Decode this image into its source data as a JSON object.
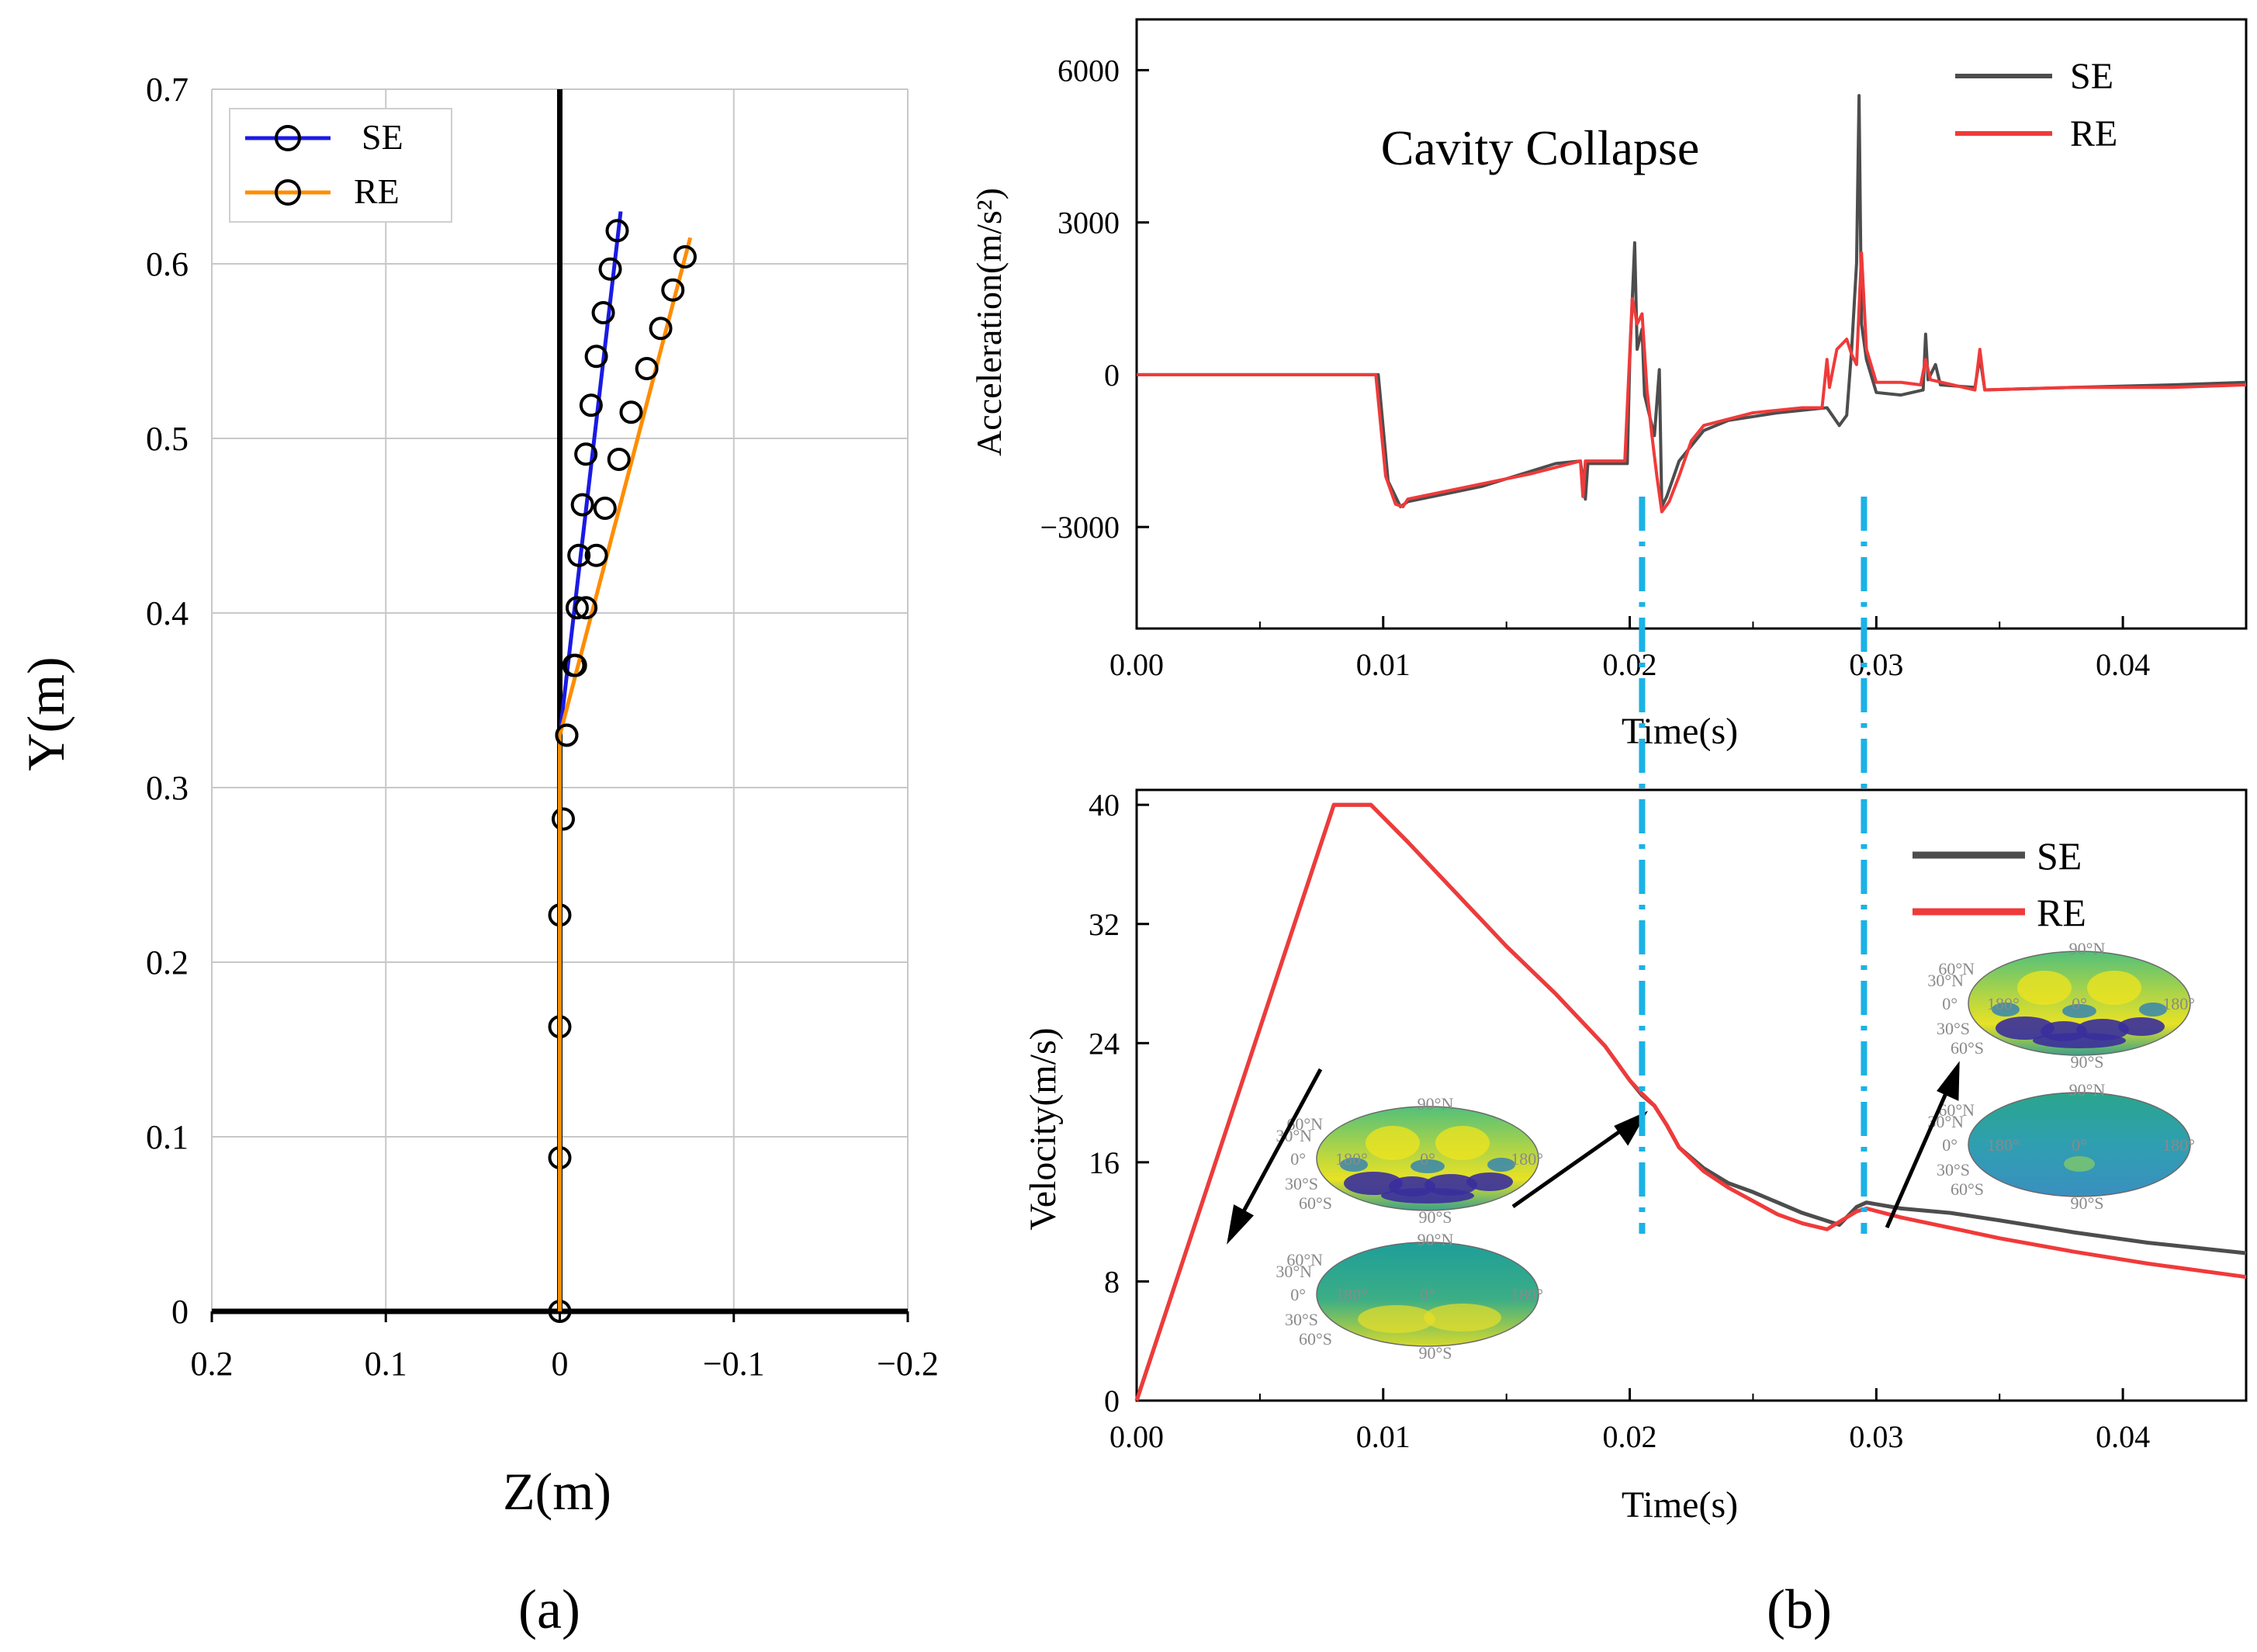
{
  "panel_labels": {
    "a": "(a)",
    "b": "(b)"
  },
  "colors": {
    "SE_a": "#1a1ae6",
    "RE_a": "#ff8c00",
    "SE_b": "#4d4d4d",
    "RE_b": "#f03a3a",
    "marker": "#000000",
    "dashdot": "#1ab2e6",
    "grid": "#c8c8c8"
  },
  "chart_data": [
    {
      "id": "a",
      "type": "line",
      "xlabel": "Z(m)",
      "ylabel": "Y(m)",
      "xlim": [
        0.2,
        -0.2
      ],
      "ylim": [
        0,
        0.7
      ],
      "xticks": [
        0.2,
        0.1,
        0,
        -0.1,
        -0.2
      ],
      "xtick_labels": [
        "0.2",
        "0.1",
        "0",
        "−0.1",
        "−0.2"
      ],
      "yticks": [
        0,
        0.1,
        0.2,
        0.3,
        0.4,
        0.5,
        0.6,
        0.7
      ],
      "ytick_labels": [
        "0",
        "0.1",
        "0.2",
        "0.3",
        "0.4",
        "0.5",
        "0.6",
        "0.7"
      ],
      "grid": true,
      "legend": {
        "position": "top-left",
        "entries": [
          "SE",
          "RE"
        ]
      },
      "axis_line": {
        "x": 0,
        "ymin": 0,
        "ymax": 0.7
      },
      "series": [
        {
          "name": "SE",
          "color_key": "SE_a",
          "line": [
            [
              0,
              0
            ],
            [
              0,
              0.33
            ],
            [
              -0.035,
              0.63
            ]
          ],
          "markers": [
            [
              0,
              0
            ],
            [
              0,
              0.088
            ],
            [
              0,
              0.163
            ],
            [
              0,
              0.227
            ],
            [
              -0.002,
              0.282
            ],
            [
              -0.004,
              0.33
            ],
            [
              -0.008,
              0.37
            ],
            [
              -0.01,
              0.403
            ],
            [
              -0.011,
              0.433
            ],
            [
              -0.013,
              0.462
            ],
            [
              -0.015,
              0.491
            ],
            [
              -0.018,
              0.519
            ],
            [
              -0.021,
              0.547
            ],
            [
              -0.025,
              0.572
            ],
            [
              -0.029,
              0.597
            ],
            [
              -0.033,
              0.619
            ]
          ]
        },
        {
          "name": "RE",
          "color_key": "RE_a",
          "line": [
            [
              0,
              0
            ],
            [
              0,
              0.33
            ],
            [
              -0.075,
              0.615
            ]
          ],
          "markers": [
            [
              -0.004,
              0.33
            ],
            [
              -0.009,
              0.37
            ],
            [
              -0.015,
              0.403
            ],
            [
              -0.021,
              0.433
            ],
            [
              -0.026,
              0.46
            ],
            [
              -0.034,
              0.488
            ],
            [
              -0.041,
              0.515
            ],
            [
              -0.05,
              0.54
            ],
            [
              -0.058,
              0.563
            ],
            [
              -0.065,
              0.585
            ],
            [
              -0.072,
              0.604
            ]
          ]
        }
      ]
    },
    {
      "id": "b-top",
      "type": "line",
      "title": "Cavity Collapse",
      "xlabel": "Time(s)",
      "ylabel": "Acceleration(m/s²)",
      "xlim": [
        0,
        0.045
      ],
      "ylim": [
        -5000,
        7000
      ],
      "xticks": [
        0,
        0.01,
        0.02,
        0.03,
        0.04
      ],
      "xtick_labels": [
        "0.00",
        "0.01",
        "0.02",
        "0.03",
        "0.04"
      ],
      "yticks": [
        -3000,
        0,
        3000,
        6000
      ],
      "ytick_labels": [
        "−3000",
        "0",
        "3000",
        "6000"
      ],
      "grid": false,
      "legend": {
        "position": "top-right",
        "entries": [
          "SE",
          "RE"
        ]
      },
      "series": [
        {
          "name": "SE",
          "color_key": "SE_b",
          "points": [
            [
              0,
              0
            ],
            [
              0.0098,
              0
            ],
            [
              0.0102,
              -2100
            ],
            [
              0.0107,
              -2600
            ],
            [
              0.011,
              -2500
            ],
            [
              0.014,
              -2200
            ],
            [
              0.017,
              -1750
            ],
            [
              0.018,
              -1700
            ],
            [
              0.0182,
              -2450
            ],
            [
              0.0183,
              -1750
            ],
            [
              0.0199,
              -1750
            ],
            [
              0.02,
              300
            ],
            [
              0.0202,
              2600
            ],
            [
              0.0203,
              500
            ],
            [
              0.0205,
              900
            ],
            [
              0.0206,
              -400
            ],
            [
              0.021,
              -1200
            ],
            [
              0.0212,
              100
            ],
            [
              0.0213,
              -2600
            ],
            [
              0.0215,
              -2400
            ],
            [
              0.022,
              -1700
            ],
            [
              0.023,
              -1100
            ],
            [
              0.024,
              -900
            ],
            [
              0.026,
              -750
            ],
            [
              0.028,
              -650
            ],
            [
              0.0285,
              -1000
            ],
            [
              0.0288,
              -800
            ],
            [
              0.029,
              500
            ],
            [
              0.0292,
              2200
            ],
            [
              0.0293,
              5500
            ],
            [
              0.0294,
              1000
            ],
            [
              0.0296,
              300
            ],
            [
              0.03,
              -350
            ],
            [
              0.031,
              -400
            ],
            [
              0.0319,
              -300
            ],
            [
              0.032,
              800
            ],
            [
              0.0321,
              -100
            ],
            [
              0.0324,
              200
            ],
            [
              0.0326,
              -200
            ],
            [
              0.034,
              -250
            ],
            [
              0.0342,
              350
            ],
            [
              0.0344,
              -300
            ],
            [
              0.038,
              -250
            ],
            [
              0.042,
              -200
            ],
            [
              0.045,
              -150
            ]
          ]
        },
        {
          "name": "RE",
          "color_key": "RE_b",
          "points": [
            [
              0,
              0
            ],
            [
              0.0097,
              0
            ],
            [
              0.0101,
              -2000
            ],
            [
              0.0105,
              -2550
            ],
            [
              0.0108,
              -2600
            ],
            [
              0.011,
              -2450
            ],
            [
              0.014,
              -2150
            ],
            [
              0.016,
              -1950
            ],
            [
              0.018,
              -1700
            ],
            [
              0.0181,
              -2400
            ],
            [
              0.0182,
              -1700
            ],
            [
              0.0198,
              -1700
            ],
            [
              0.0201,
              1500
            ],
            [
              0.0203,
              1000
            ],
            [
              0.0205,
              1200
            ],
            [
              0.0207,
              -300
            ],
            [
              0.0209,
              -1200
            ],
            [
              0.0211,
              -2000
            ],
            [
              0.0213,
              -2700
            ],
            [
              0.0216,
              -2500
            ],
            [
              0.022,
              -2000
            ],
            [
              0.0225,
              -1300
            ],
            [
              0.023,
              -1000
            ],
            [
              0.025,
              -750
            ],
            [
              0.027,
              -650
            ],
            [
              0.0278,
              -650
            ],
            [
              0.028,
              300
            ],
            [
              0.0281,
              -250
            ],
            [
              0.0284,
              500
            ],
            [
              0.0288,
              700
            ],
            [
              0.029,
              400
            ],
            [
              0.0292,
              200
            ],
            [
              0.0294,
              2400
            ],
            [
              0.0296,
              500
            ],
            [
              0.03,
              -150
            ],
            [
              0.031,
              -150
            ],
            [
              0.0318,
              -200
            ],
            [
              0.032,
              300
            ],
            [
              0.0322,
              -100
            ],
            [
              0.034,
              -300
            ],
            [
              0.0342,
              500
            ],
            [
              0.0344,
              -300
            ],
            [
              0.038,
              -250
            ],
            [
              0.042,
              -250
            ],
            [
              0.045,
              -200
            ]
          ]
        }
      ],
      "guides": [
        0.0205,
        0.0295
      ]
    },
    {
      "id": "b-bottom",
      "type": "line",
      "xlabel": "Time(s)",
      "ylabel": "Velocity(m/s)",
      "xlim": [
        0,
        0.045
      ],
      "ylim": [
        0,
        41
      ],
      "xticks": [
        0,
        0.01,
        0.02,
        0.03,
        0.04
      ],
      "xtick_labels": [
        "0.00",
        "0.01",
        "0.02",
        "0.03",
        "0.04"
      ],
      "yticks": [
        0,
        8,
        16,
        24,
        32,
        40
      ],
      "ytick_labels": [
        "0",
        "8",
        "16",
        "24",
        "32",
        "40"
      ],
      "grid": false,
      "legend": {
        "position": "top-right",
        "entries": [
          "SE",
          "RE"
        ]
      },
      "series": [
        {
          "name": "SE",
          "color_key": "SE_b",
          "points": [
            [
              0,
              0
            ],
            [
              0.008,
              40
            ],
            [
              0.0095,
              40
            ],
            [
              0.011,
              37.5
            ],
            [
              0.013,
              34
            ],
            [
              0.015,
              30.5
            ],
            [
              0.017,
              27.3
            ],
            [
              0.019,
              23.8
            ],
            [
              0.02,
              21.5
            ],
            [
              0.0205,
              20.5
            ],
            [
              0.021,
              19.8
            ],
            [
              0.0215,
              18.5
            ],
            [
              0.022,
              17
            ],
            [
              0.023,
              15.6
            ],
            [
              0.024,
              14.6
            ],
            [
              0.025,
              14
            ],
            [
              0.026,
              13.3
            ],
            [
              0.027,
              12.6
            ],
            [
              0.0285,
              11.8
            ],
            [
              0.0292,
              13
            ],
            [
              0.0296,
              13.3
            ],
            [
              0.031,
              12.9
            ],
            [
              0.033,
              12.6
            ],
            [
              0.035,
              12.1
            ],
            [
              0.038,
              11.3
            ],
            [
              0.041,
              10.6
            ],
            [
              0.045,
              9.9
            ]
          ]
        },
        {
          "name": "RE",
          "color_key": "RE_b",
          "points": [
            [
              0,
              0
            ],
            [
              0.008,
              40
            ],
            [
              0.0095,
              40
            ],
            [
              0.011,
              37.5
            ],
            [
              0.013,
              34
            ],
            [
              0.015,
              30.5
            ],
            [
              0.017,
              27.3
            ],
            [
              0.019,
              23.8
            ],
            [
              0.02,
              21.5
            ],
            [
              0.0205,
              20.6
            ],
            [
              0.021,
              19.8
            ],
            [
              0.0215,
              18.5
            ],
            [
              0.022,
              17
            ],
            [
              0.023,
              15.4
            ],
            [
              0.024,
              14.3
            ],
            [
              0.025,
              13.4
            ],
            [
              0.026,
              12.5
            ],
            [
              0.027,
              11.9
            ],
            [
              0.028,
              11.5
            ],
            [
              0.0292,
              12.7
            ],
            [
              0.0296,
              12.9
            ],
            [
              0.031,
              12.3
            ],
            [
              0.033,
              11.6
            ],
            [
              0.035,
              10.9
            ],
            [
              0.038,
              10
            ],
            [
              0.041,
              9.2
            ],
            [
              0.045,
              8.3
            ]
          ]
        }
      ],
      "guides": [
        0.0205,
        0.0295
      ],
      "insets": [
        {
          "name": "inset-upper-left",
          "time_ref": 0.0205,
          "labels": {
            "n90": "90°N",
            "n60": "60°N",
            "n30": "30°N",
            "eq": "0°",
            "s30": "30°S",
            "s60": "60°S",
            "s90": "90°S",
            "lonL": "180°",
            "lonC": "0°",
            "lonR": "180°"
          }
        },
        {
          "name": "inset-lower-left",
          "time_ref": 0.0205,
          "labels": {
            "n90": "90°N",
            "n60": "60°N",
            "n30": "30°N",
            "eq": "0°",
            "s30": "30°S",
            "s60": "60°S",
            "s90": "90°S",
            "lonL": "180°",
            "lonC": "0°",
            "lonR": "180°"
          }
        },
        {
          "name": "inset-upper-right",
          "time_ref": 0.0295,
          "labels": {
            "n90": "90°N",
            "n60": "60°N",
            "n30": "30°N",
            "eq": "0°",
            "s30": "30°S",
            "s60": "60°S",
            "s90": "90°S",
            "lonL": "180°",
            "lonC": "0°",
            "lonR": "180°"
          }
        },
        {
          "name": "inset-lower-right",
          "time_ref": 0.0295,
          "labels": {
            "n90": "90°N",
            "n60": "60°N",
            "n30": "30°N",
            "eq": "0°",
            "s30": "30°S",
            "s60": "60°S",
            "s90": "90°S",
            "lonL": "180°",
            "lonC": "0°",
            "lonR": "180°"
          }
        }
      ]
    }
  ]
}
